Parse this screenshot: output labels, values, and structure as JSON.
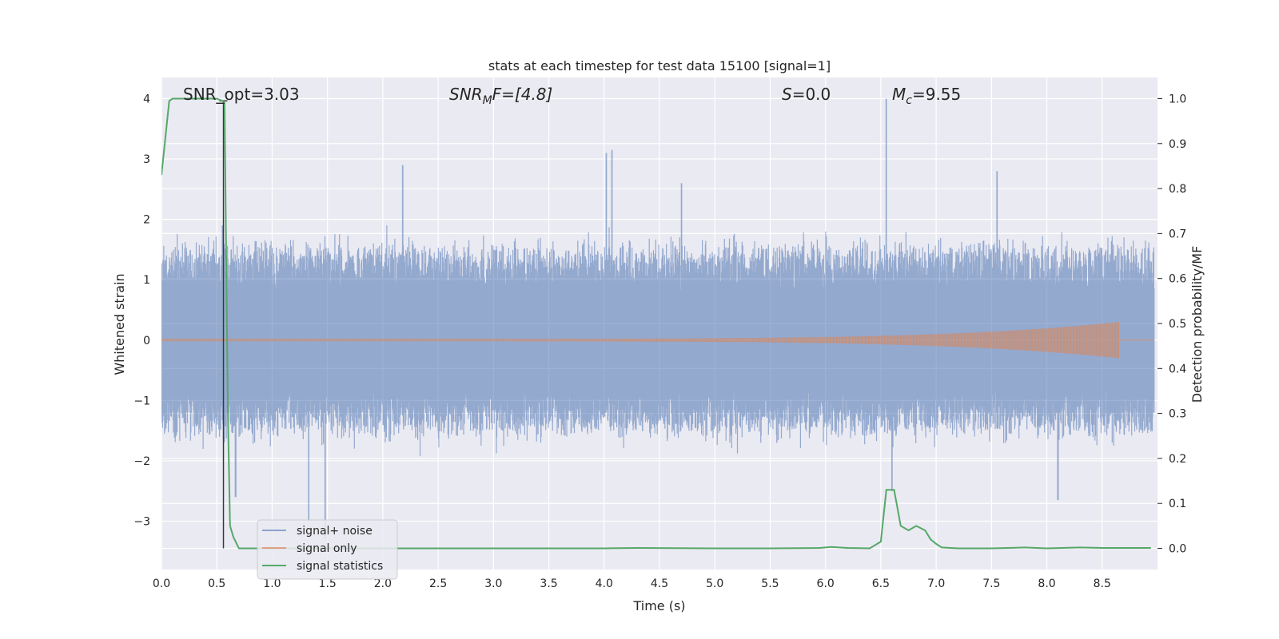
{
  "chart_data": {
    "type": "line",
    "title": "stats at each timestep for test data 15100 [signal=1]",
    "xlabel": "Time (s)",
    "ylabel_left": "Whitened strain",
    "ylabel_right": "Detection probability/MF",
    "xlim": [
      0.0,
      9.0
    ],
    "ylim_left": [
      -3.8,
      4.35
    ],
    "ylim_right": [
      -0.047,
      1.047
    ],
    "grid": true,
    "legend_placement": "lower-left",
    "x_ticks": [
      "0.0",
      "0.5",
      "1.0",
      "1.5",
      "2.0",
      "2.5",
      "3.0",
      "3.5",
      "4.0",
      "4.5",
      "5.0",
      "5.5",
      "6.0",
      "6.5",
      "7.0",
      "7.5",
      "8.0",
      "8.5"
    ],
    "x_tick_values": [
      0.0,
      0.5,
      1.0,
      1.5,
      2.0,
      2.5,
      3.0,
      3.5,
      4.0,
      4.5,
      5.0,
      5.5,
      6.0,
      6.5,
      7.0,
      7.5,
      8.0,
      8.5
    ],
    "y_ticks_left": [
      "−3",
      "−2",
      "−1",
      "0",
      "1",
      "2",
      "3",
      "4"
    ],
    "y_tick_values_left": [
      -3,
      -2,
      -1,
      0,
      1,
      2,
      3,
      4
    ],
    "y_ticks_right": [
      "0.0",
      "0.1",
      "0.2",
      "0.3",
      "0.4",
      "0.5",
      "0.6",
      "0.7",
      "0.8",
      "0.9",
      "1.0"
    ],
    "y_tick_values_right": [
      0.0,
      0.1,
      0.2,
      0.3,
      0.4,
      0.5,
      0.6,
      0.7,
      0.8,
      0.9,
      1.0
    ],
    "annotations": {
      "snr_opt": "SNR_opt=3.03",
      "snr_mf_base": "SNR",
      "snr_mf_sub": "M",
      "snr_mf_rest": "F=[4.8]",
      "s_value_base": "S",
      "s_value_rest": "=0.0",
      "mc_base": "M",
      "mc_sub": "c",
      "mc_rest": "=9.55"
    },
    "series": [
      {
        "name": "signal+ noise",
        "color": "#4c72b0",
        "description_stats": {
          "typical_envelope": [
            -1.4,
            1.4
          ],
          "max": 4.0,
          "min": -3.4
        },
        "peaks": [
          {
            "x": 0.55,
            "y": 1.9
          },
          {
            "x": 0.67,
            "y": -2.6
          },
          {
            "x": 1.33,
            "y": -3.0
          },
          {
            "x": 1.48,
            "y": -3.3
          },
          {
            "x": 2.18,
            "y": 2.9
          },
          {
            "x": 4.02,
            "y": 3.1
          },
          {
            "x": 4.07,
            "y": 3.15
          },
          {
            "x": 4.7,
            "y": 2.6
          },
          {
            "x": 6.55,
            "y": 4.0
          },
          {
            "x": 6.6,
            "y": -2.5
          },
          {
            "x": 7.55,
            "y": 2.8
          },
          {
            "x": 8.1,
            "y": -2.65
          }
        ]
      },
      {
        "name": "signal only",
        "color": "#dd8452",
        "chirp_end_x": 8.65,
        "chirp_max_amplitude": 0.28
      },
      {
        "name": "signal statistics",
        "color": "#55a868",
        "axis": "right",
        "x": [
          0.0,
          0.07,
          0.1,
          0.15,
          0.2,
          0.3,
          0.4,
          0.5,
          0.55,
          0.57,
          0.6,
          0.62,
          0.65,
          0.7,
          1.0,
          1.5,
          2.0,
          3.0,
          4.0,
          4.3,
          5.0,
          5.5,
          5.95,
          6.05,
          6.2,
          6.4,
          6.5,
          6.55,
          6.6,
          6.62,
          6.68,
          6.75,
          6.82,
          6.9,
          6.95,
          7.0,
          7.05,
          7.2,
          7.5,
          7.8,
          8.0,
          8.3,
          8.5,
          8.94
        ],
        "values": [
          0.83,
          0.995,
          1.0,
          1.0,
          1.0,
          1.0,
          1.0,
          1.0,
          0.995,
          0.99,
          0.3,
          0.05,
          0.025,
          0.0,
          0.0,
          0.0,
          0.0,
          0.0,
          0.0,
          0.001,
          0.0,
          0.0,
          0.001,
          0.003,
          0.001,
          0.0,
          0.015,
          0.13,
          0.13,
          0.13,
          0.05,
          0.04,
          0.05,
          0.04,
          0.02,
          0.01,
          0.002,
          0.0,
          0.0,
          0.002,
          0.0,
          0.002,
          0.001,
          0.001
        ]
      }
    ],
    "vertical_marker_x": 0.56
  }
}
